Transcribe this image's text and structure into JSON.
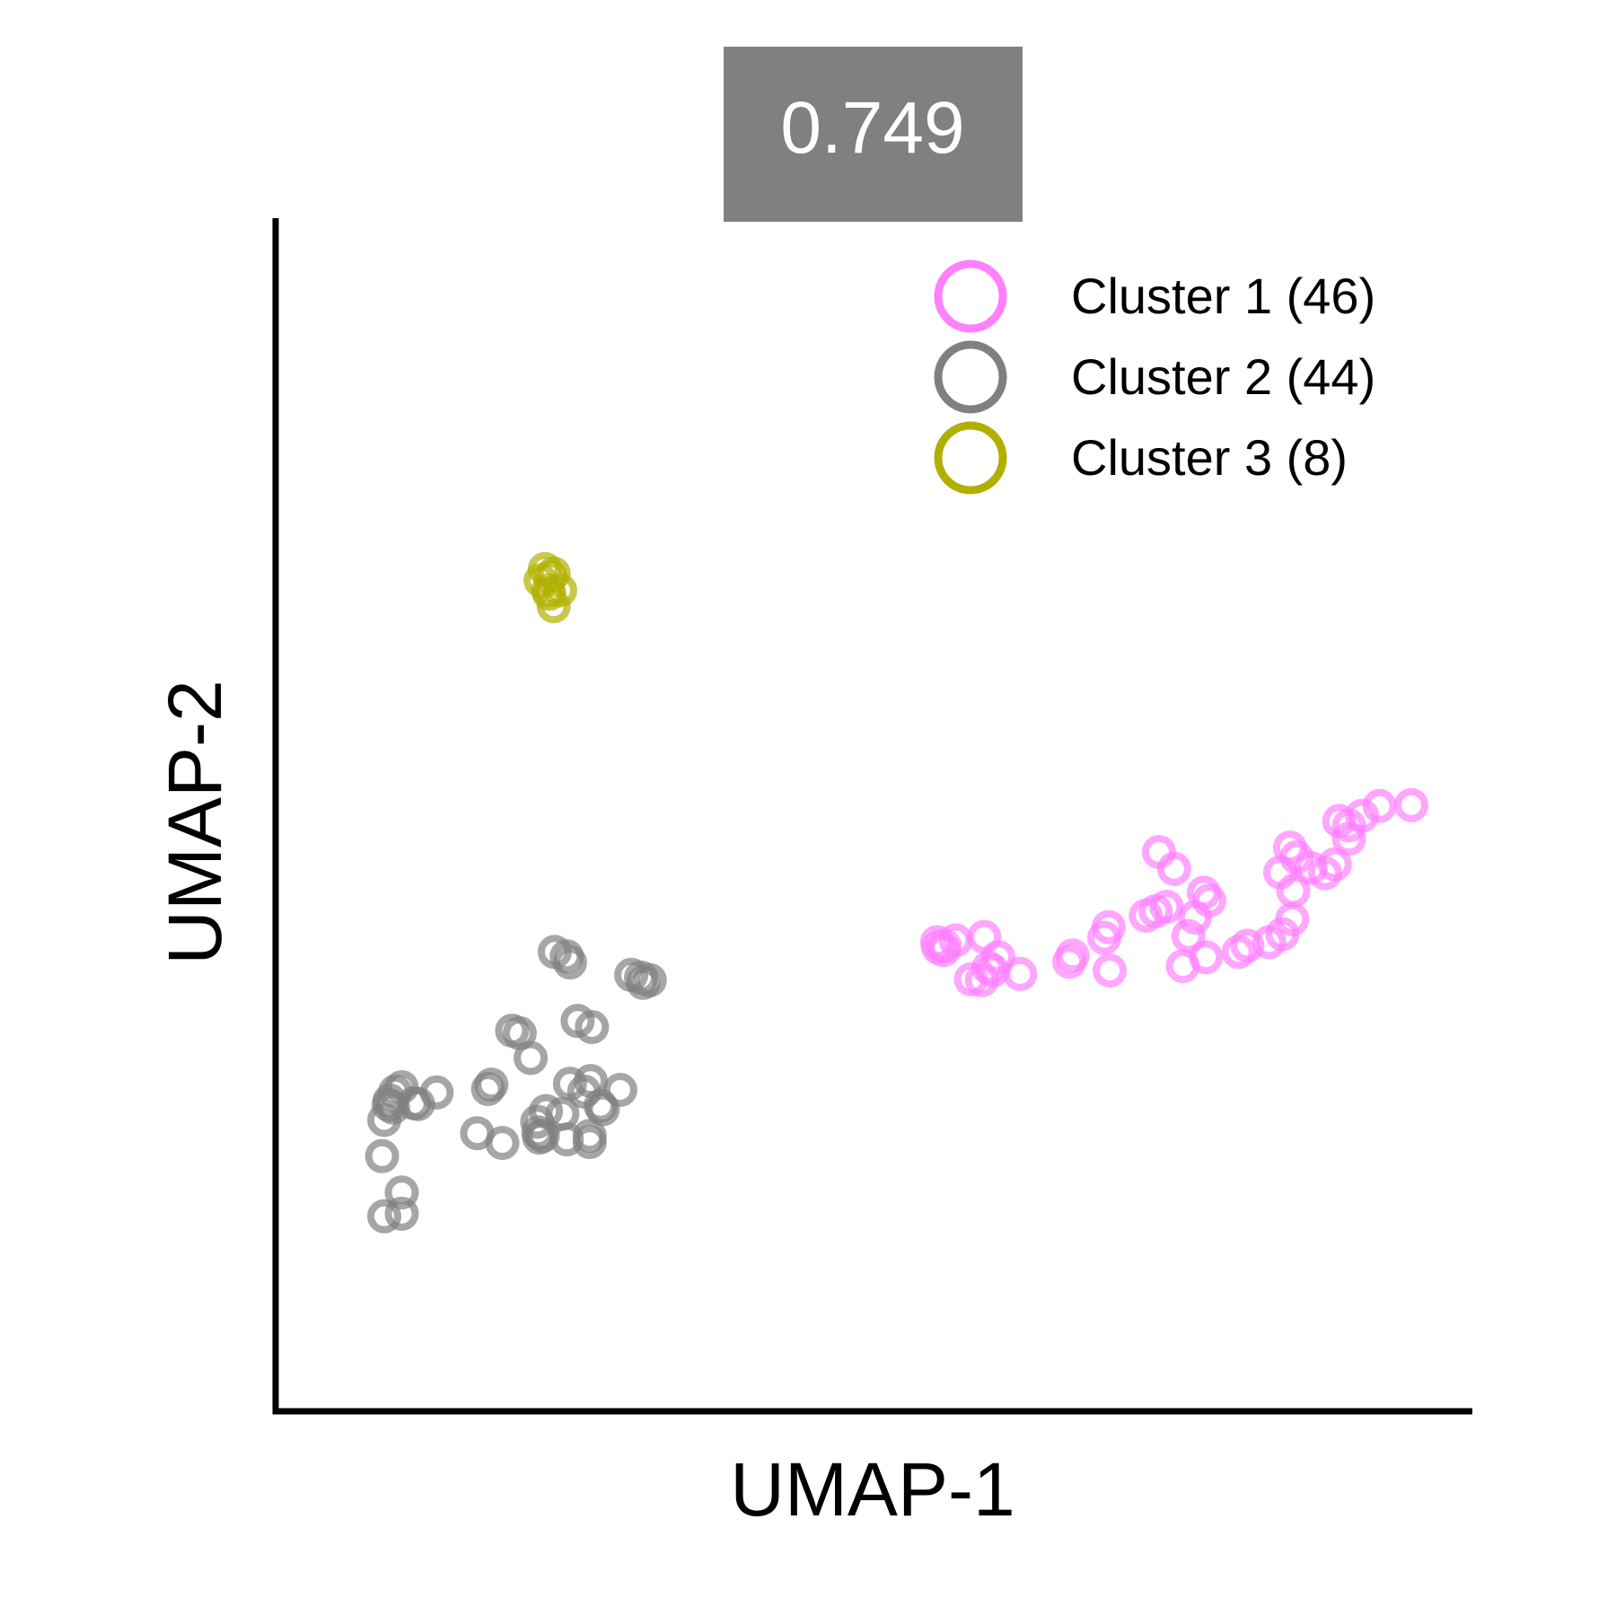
{
  "header_badge": {
    "text": "0.749",
    "background": "#808080",
    "text_color": "#ffffff"
  },
  "chart_data": {
    "type": "scatter",
    "title": "",
    "xlabel": "UMAP-1",
    "ylabel": "UMAP-2",
    "xlim": [
      0,
      100
    ],
    "ylim": [
      0,
      100
    ],
    "ticks_shown": false,
    "grid": false,
    "legend_position": "top-right",
    "marker": "open-circle",
    "series": [
      {
        "name": "Cluster 1 (46)",
        "color": "#ff80ff",
        "points": [
          [
            57.3,
            42.8
          ],
          [
            57.2,
            42.3
          ],
          [
            58.3,
            43.4
          ],
          [
            56.6,
            43.2
          ],
          [
            56.7,
            42.6
          ],
          [
            60.9,
            43.8
          ],
          [
            62.2,
            41.5
          ],
          [
            61.3,
            40.3
          ],
          [
            59.7,
            39.0
          ],
          [
            60.7,
            38.9
          ],
          [
            61.7,
            40.0
          ],
          [
            64.2,
            39.6
          ],
          [
            69.0,
            41.7
          ],
          [
            68.7,
            41.0
          ],
          [
            72.4,
            40.0
          ],
          [
            71.9,
            43.7
          ],
          [
            72.3,
            44.9
          ],
          [
            75.7,
            46.2
          ],
          [
            76.6,
            46.7
          ],
          [
            77.6,
            47.2
          ],
          [
            76.9,
            53.4
          ],
          [
            78.3,
            51.5
          ],
          [
            80.2,
            46.0
          ],
          [
            79.6,
            43.9
          ],
          [
            79.1,
            40.5
          ],
          [
            81.2,
            41.5
          ],
          [
            81.5,
            47.9
          ],
          [
            81.0,
            48.8
          ],
          [
            84.2,
            42.1
          ],
          [
            85.0,
            42.8
          ],
          [
            87.0,
            43.2
          ],
          [
            88.2,
            44.1
          ],
          [
            89.1,
            45.8
          ],
          [
            89.2,
            49.0
          ],
          [
            88.0,
            51.1
          ],
          [
            88.9,
            53.9
          ],
          [
            89.5,
            52.8
          ],
          [
            90.8,
            51.6
          ],
          [
            92.1,
            51.0
          ],
          [
            93.0,
            52.0
          ],
          [
            93.4,
            56.9
          ],
          [
            94.3,
            56.4
          ],
          [
            94.3,
            54.9
          ],
          [
            95.5,
            57.5
          ],
          [
            97.1,
            58.6
          ],
          [
            100.0,
            58.7
          ]
        ]
      },
      {
        "name": "Cluster 2 (44)",
        "color": "#808080",
        "points": [
          [
            21.6,
            42.1
          ],
          [
            23.0,
            40.9
          ],
          [
            22.7,
            41.6
          ],
          [
            28.6,
            39.5
          ],
          [
            29.5,
            39.2
          ],
          [
            29.7,
            38.6
          ],
          [
            30.3,
            38.9
          ],
          [
            23.7,
            34.3
          ],
          [
            25.0,
            33.6
          ],
          [
            18.4,
            32.9
          ],
          [
            17.7,
            33.2
          ],
          [
            19.4,
            30.1
          ],
          [
            15.5,
            26.6
          ],
          [
            15.8,
            27.1
          ],
          [
            24.9,
            27.5
          ],
          [
            27.6,
            26.5
          ],
          [
            26.0,
            24.3
          ],
          [
            20.8,
            24.1
          ],
          [
            20.1,
            21.7
          ],
          [
            20.5,
            21.3
          ],
          [
            22.3,
            23.8
          ],
          [
            22.7,
            20.9
          ],
          [
            20.2,
            21.1
          ],
          [
            24.8,
            21.3
          ],
          [
            24.8,
            20.6
          ],
          [
            25.8,
            24.7
          ],
          [
            24.3,
            26.3
          ],
          [
            23.0,
            27.2
          ],
          [
            20.0,
            22.9
          ],
          [
            16.8,
            20.5
          ],
          [
            14.5,
            21.6
          ],
          [
            7.0,
            26.3
          ],
          [
            7.6,
            26.8
          ],
          [
            6.5,
            25.3
          ],
          [
            8.7,
            25.0
          ],
          [
            10.8,
            26.2
          ],
          [
            9.1,
            24.9
          ],
          [
            6.0,
            23.1
          ],
          [
            6.8,
            24.5
          ],
          [
            6.4,
            24.8
          ],
          [
            5.8,
            19.0
          ],
          [
            7.6,
            14.9
          ],
          [
            7.6,
            12.5
          ],
          [
            6.0,
            12.2
          ]
        ]
      },
      {
        "name": "Cluster 3 (8)",
        "color": "#b0b000",
        "points": [
          [
            20.7,
            85.4
          ],
          [
            21.2,
            84.5
          ],
          [
            21.5,
            84.9
          ],
          [
            20.3,
            84.1
          ],
          [
            21.0,
            83.0
          ],
          [
            22.1,
            83.0
          ],
          [
            21.1,
            82.6
          ],
          [
            21.5,
            81.2
          ]
        ]
      }
    ]
  }
}
